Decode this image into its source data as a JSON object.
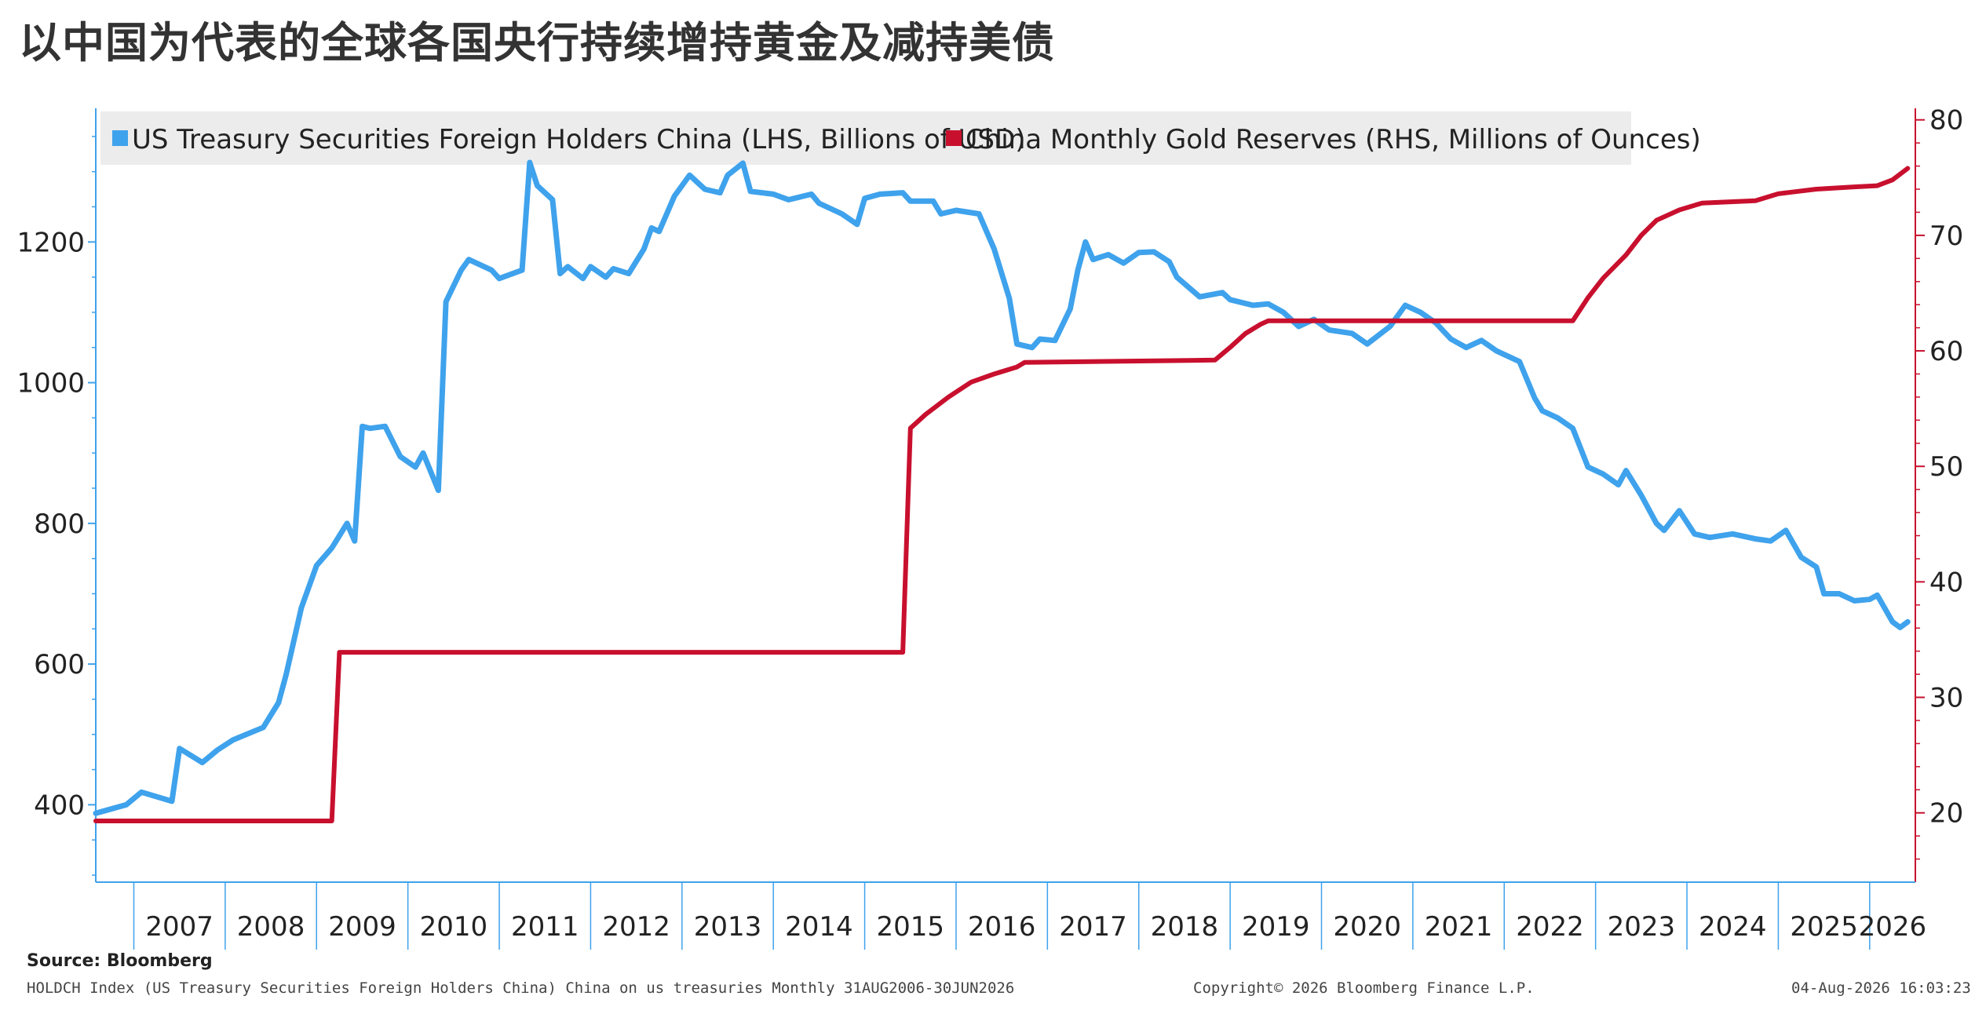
{
  "title": "以中国为代表的全球各国央行持续增持黄金及减持美债",
  "footer": {
    "source": "Source: Bloomberg",
    "description": "HOLDCH Index (US Treasury Securities Foreign Holders China) China on us treasuries Monthly 31AUG2006-30JUN2026",
    "copyright": "Copyright© 2026 Bloomberg Finance L.P.",
    "timestamp": "04-Aug-2026 16:03:23"
  },
  "colors": {
    "treasury": "#3fa2ec",
    "gold": "#c8102e",
    "axis": "#3fa2ec",
    "axis_right": "#c8102e"
  },
  "chart_data": {
    "type": "line",
    "x_ticks": [
      "2007",
      "2008",
      "2009",
      "2010",
      "2011",
      "2012",
      "2013",
      "2014",
      "2015",
      "2016",
      "2017",
      "2018",
      "2019",
      "2020",
      "2021",
      "2022",
      "2023",
      "2024",
      "2025",
      "2026"
    ],
    "x_range": [
      "2006-08",
      "2026-07"
    ],
    "y_left": {
      "ticks": [
        400,
        600,
        800,
        1000,
        1200
      ],
      "range": [
        290,
        1390
      ]
    },
    "y_right": {
      "ticks": [
        20,
        30,
        40,
        50,
        60,
        70,
        80
      ],
      "range": [
        14,
        81
      ]
    },
    "series": [
      {
        "name": "US Treasury Securities Foreign Holders China (LHS, Billions of USD)",
        "axis": "left",
        "points": [
          [
            "2006-08",
            388
          ],
          [
            "2006-12",
            400
          ],
          [
            "2007-02",
            418
          ],
          [
            "2007-06",
            405
          ],
          [
            "2007-07",
            480
          ],
          [
            "2007-10",
            460
          ],
          [
            "2007-12",
            478
          ],
          [
            "2008-02",
            492
          ],
          [
            "2008-06",
            510
          ],
          [
            "2008-08",
            545
          ],
          [
            "2008-09",
            585
          ],
          [
            "2008-11",
            680
          ],
          [
            "2009-01",
            740
          ],
          [
            "2009-03",
            765
          ],
          [
            "2009-05",
            800
          ],
          [
            "2009-06",
            775
          ],
          [
            "2009-07",
            938
          ],
          [
            "2009-08",
            935
          ],
          [
            "2009-10",
            938
          ],
          [
            "2009-12",
            895
          ],
          [
            "2010-02",
            880
          ],
          [
            "2010-03",
            900
          ],
          [
            "2010-05",
            847
          ],
          [
            "2010-06",
            1115
          ],
          [
            "2010-08",
            1160
          ],
          [
            "2010-09",
            1175
          ],
          [
            "2010-12",
            1160
          ],
          [
            "2011-01",
            1148
          ],
          [
            "2011-04",
            1160
          ],
          [
            "2011-05",
            1313
          ],
          [
            "2011-06",
            1280
          ],
          [
            "2011-08",
            1260
          ],
          [
            "2011-09",
            1155
          ],
          [
            "2011-10",
            1165
          ],
          [
            "2011-12",
            1148
          ],
          [
            "2012-01",
            1165
          ],
          [
            "2012-03",
            1150
          ],
          [
            "2012-04",
            1162
          ],
          [
            "2012-06",
            1155
          ],
          [
            "2012-08",
            1190
          ],
          [
            "2012-09",
            1220
          ],
          [
            "2012-10",
            1215
          ],
          [
            "2012-12",
            1265
          ],
          [
            "2013-02",
            1295
          ],
          [
            "2013-04",
            1275
          ],
          [
            "2013-06",
            1270
          ],
          [
            "2013-07",
            1295
          ],
          [
            "2013-09",
            1312
          ],
          [
            "2013-10",
            1272
          ],
          [
            "2014-01",
            1268
          ],
          [
            "2014-03",
            1260
          ],
          [
            "2014-06",
            1268
          ],
          [
            "2014-07",
            1255
          ],
          [
            "2014-10",
            1240
          ],
          [
            "2014-12",
            1225
          ],
          [
            "2015-01",
            1262
          ],
          [
            "2015-03",
            1268
          ],
          [
            "2015-06",
            1270
          ],
          [
            "2015-07",
            1258
          ],
          [
            "2015-10",
            1258
          ],
          [
            "2015-11",
            1240
          ],
          [
            "2016-01",
            1245
          ],
          [
            "2016-04",
            1240
          ],
          [
            "2016-06",
            1190
          ],
          [
            "2016-08",
            1120
          ],
          [
            "2016-09",
            1055
          ],
          [
            "2016-11",
            1050
          ],
          [
            "2016-12",
            1062
          ],
          [
            "2017-02",
            1060
          ],
          [
            "2017-04",
            1105
          ],
          [
            "2017-05",
            1160
          ],
          [
            "2017-06",
            1200
          ],
          [
            "2017-07",
            1175
          ],
          [
            "2017-09",
            1182
          ],
          [
            "2017-11",
            1170
          ],
          [
            "2018-01",
            1185
          ],
          [
            "2018-03",
            1186
          ],
          [
            "2018-05",
            1172
          ],
          [
            "2018-06",
            1150
          ],
          [
            "2018-09",
            1122
          ],
          [
            "2018-12",
            1128
          ],
          [
            "2019-01",
            1118
          ],
          [
            "2019-04",
            1110
          ],
          [
            "2019-06",
            1112
          ],
          [
            "2019-08",
            1100
          ],
          [
            "2019-10",
            1080
          ],
          [
            "2019-12",
            1090
          ],
          [
            "2020-02",
            1075
          ],
          [
            "2020-05",
            1070
          ],
          [
            "2020-07",
            1055
          ],
          [
            "2020-10",
            1080
          ],
          [
            "2020-12",
            1110
          ],
          [
            "2021-02",
            1100
          ],
          [
            "2021-04",
            1085
          ],
          [
            "2021-06",
            1062
          ],
          [
            "2021-08",
            1050
          ],
          [
            "2021-10",
            1060
          ],
          [
            "2021-12",
            1045
          ],
          [
            "2022-01",
            1040
          ],
          [
            "2022-03",
            1030
          ],
          [
            "2022-05",
            978
          ],
          [
            "2022-06",
            960
          ],
          [
            "2022-08",
            950
          ],
          [
            "2022-10",
            935
          ],
          [
            "2022-12",
            880
          ],
          [
            "2023-02",
            870
          ],
          [
            "2023-04",
            855
          ],
          [
            "2023-05",
            875
          ],
          [
            "2023-07",
            840
          ],
          [
            "2023-09",
            800
          ],
          [
            "2023-10",
            790
          ],
          [
            "2023-12",
            818
          ],
          [
            "2024-02",
            785
          ],
          [
            "2024-04",
            780
          ],
          [
            "2024-07",
            785
          ],
          [
            "2024-10",
            778
          ],
          [
            "2024-12",
            775
          ],
          [
            "2025-02",
            790
          ],
          [
            "2025-04",
            752
          ],
          [
            "2025-06",
            738
          ],
          [
            "2025-07",
            700
          ],
          [
            "2025-09",
            700
          ],
          [
            "2025-11",
            690
          ],
          [
            "2026-01",
            692
          ],
          [
            "2026-02",
            698
          ],
          [
            "2026-04",
            660
          ],
          [
            "2026-05",
            652
          ],
          [
            "2026-06",
            660
          ]
        ]
      },
      {
        "name": "China Monthly Gold Reserves (RHS, Millions of Ounces)",
        "axis": "right",
        "points": [
          [
            "2006-08",
            19.3
          ],
          [
            "2009-03",
            19.3
          ],
          [
            "2009-04",
            33.9
          ],
          [
            "2015-06",
            33.9
          ],
          [
            "2015-07",
            53.3
          ],
          [
            "2015-09",
            54.5
          ],
          [
            "2015-12",
            56.0
          ],
          [
            "2016-03",
            57.3
          ],
          [
            "2016-06",
            58.0
          ],
          [
            "2016-09",
            58.6
          ],
          [
            "2016-10",
            59.0
          ],
          [
            "2018-11",
            59.2
          ],
          [
            "2019-01",
            60.3
          ],
          [
            "2019-03",
            61.5
          ],
          [
            "2019-05",
            62.3
          ],
          [
            "2019-06",
            62.6
          ],
          [
            "2022-10",
            62.6
          ],
          [
            "2022-12",
            64.6
          ],
          [
            "2023-02",
            66.3
          ],
          [
            "2023-05",
            68.3
          ],
          [
            "2023-07",
            70.0
          ],
          [
            "2023-09",
            71.3
          ],
          [
            "2023-12",
            72.2
          ],
          [
            "2024-03",
            72.8
          ],
          [
            "2024-10",
            73.0
          ],
          [
            "2025-01",
            73.6
          ],
          [
            "2025-06",
            74.0
          ],
          [
            "2025-11",
            74.2
          ],
          [
            "2026-02",
            74.3
          ],
          [
            "2026-04",
            74.8
          ],
          [
            "2026-06",
            75.8
          ]
        ]
      }
    ]
  }
}
